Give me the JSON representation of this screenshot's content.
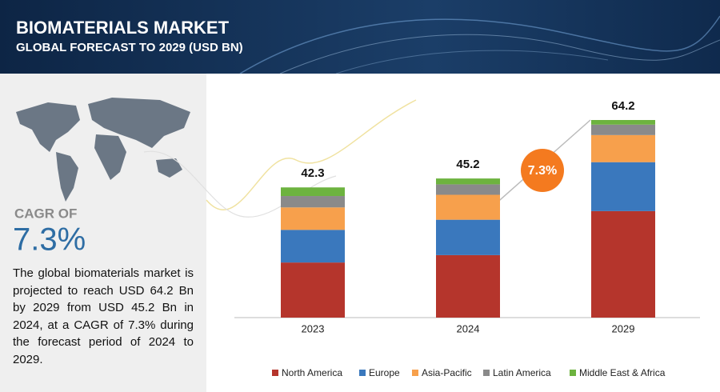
{
  "chart_data": {
    "type": "stacked_bar",
    "title": "BIOMATERIALS MARKET",
    "subtitle": "GLOBAL FORECAST TO 2029 (USD BN)",
    "categories": [
      "2023",
      "2024",
      "2029"
    ],
    "series": [
      {
        "name": "North America",
        "color": "#b5352c",
        "values": [
          17.9,
          20.3,
          34.6
        ]
      },
      {
        "name": "Europe",
        "color": "#3a78bd",
        "values": [
          10.6,
          11.5,
          15.9
        ]
      },
      {
        "name": "Asia-Pacific",
        "color": "#f7a04c",
        "values": [
          7.3,
          8.1,
          8.8
        ]
      },
      {
        "name": "Latin America",
        "color": "#8a8a8a",
        "values": [
          3.7,
          3.4,
          3.4
        ]
      },
      {
        "name": "Middle East & Africa",
        "color": "#6db33f",
        "values": [
          2.8,
          1.9,
          1.5
        ]
      }
    ],
    "totals": [
      42.3,
      45.2,
      64.2
    ],
    "cagr_bubble": "7.3%",
    "side_panel": {
      "label": "CAGR OF",
      "value": "7.3%",
      "text": "The global biomaterials market is projected to reach USD 64.2 Bn by 2029 from USD 45.2 Bn in 2024, at a CAGR of 7.3% during the forecast period of 2024 to 2029."
    }
  }
}
